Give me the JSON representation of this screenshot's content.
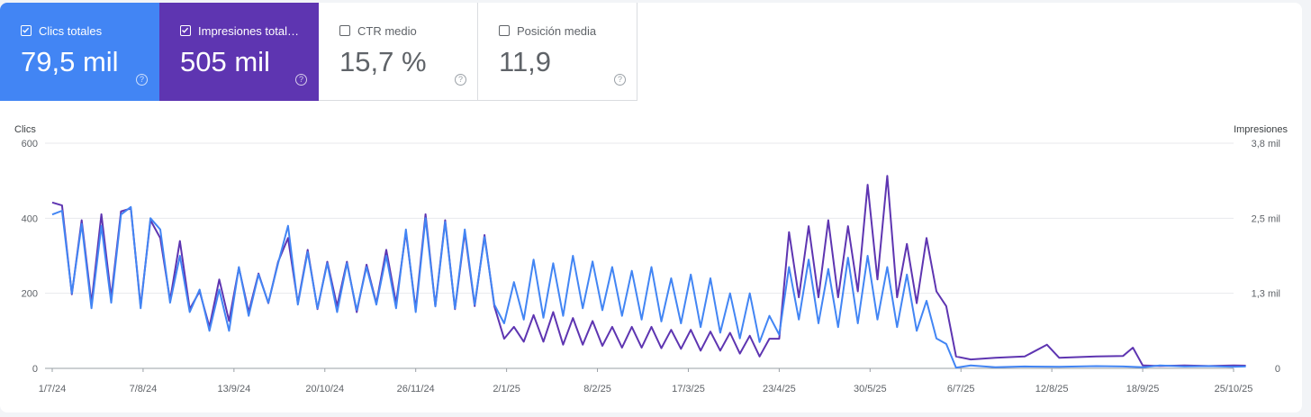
{
  "metrics": [
    {
      "label": "Clics totales",
      "value": "79,5 mil",
      "checked": true
    },
    {
      "label": "Impresiones total…",
      "value": "505 mil",
      "checked": true
    },
    {
      "label": "CTR medio",
      "value": "15,7 %",
      "checked": false
    },
    {
      "label": "Posición media",
      "value": "11,9",
      "checked": false
    }
  ],
  "help_glyph": "?",
  "colors": {
    "clicks": "#4285f4",
    "impressions": "#5e35b1",
    "grid": "#e8eaed"
  },
  "chart_data": {
    "type": "line",
    "left_axis_title": "Clics",
    "right_axis_title": "Impresiones",
    "left_ticks": [
      "0",
      "200",
      "400",
      "600"
    ],
    "right_ticks": [
      "0",
      "1,3 mil",
      "2,5 mil",
      "3,8 mil"
    ],
    "ylim_left": [
      0,
      600
    ],
    "ylim_right": [
      0,
      3800
    ],
    "grid": true,
    "x_tick_labels": [
      "1/7/24",
      "7/8/24",
      "13/9/24",
      "20/10/24",
      "26/11/24",
      "2/1/25",
      "8/2/25",
      "17/3/25",
      "23/4/25",
      "30/5/25",
      "6/7/25",
      "12/8/25",
      "18/9/25",
      "25/10/25"
    ],
    "x_tick_dates": [
      "2024-07-01",
      "2024-08-07",
      "2024-09-13",
      "2024-10-20",
      "2024-11-26",
      "2025-01-02",
      "2025-02-08",
      "2025-03-17",
      "2025-04-23",
      "2025-05-30",
      "2025-07-06",
      "2025-08-12",
      "2025-09-18",
      "2025-10-25"
    ],
    "series": [
      {
        "name": "Clics",
        "axis": "left",
        "points": [
          [
            "2024-07-01",
            410
          ],
          [
            "2024-07-05",
            420
          ],
          [
            "2024-07-09",
            200
          ],
          [
            "2024-07-13",
            385
          ],
          [
            "2024-07-17",
            160
          ],
          [
            "2024-07-21",
            380
          ],
          [
            "2024-07-25",
            175
          ],
          [
            "2024-07-29",
            410
          ],
          [
            "2024-08-02",
            430
          ],
          [
            "2024-08-06",
            160
          ],
          [
            "2024-08-10",
            400
          ],
          [
            "2024-08-14",
            370
          ],
          [
            "2024-08-18",
            175
          ],
          [
            "2024-08-22",
            300
          ],
          [
            "2024-08-26",
            150
          ],
          [
            "2024-08-30",
            210
          ],
          [
            "2024-09-03",
            100
          ],
          [
            "2024-09-07",
            210
          ],
          [
            "2024-09-11",
            100
          ],
          [
            "2024-09-15",
            270
          ],
          [
            "2024-09-19",
            140
          ],
          [
            "2024-09-23",
            250
          ],
          [
            "2024-09-27",
            175
          ],
          [
            "2024-10-01",
            280
          ],
          [
            "2024-10-05",
            380
          ],
          [
            "2024-10-09",
            170
          ],
          [
            "2024-10-13",
            310
          ],
          [
            "2024-10-17",
            160
          ],
          [
            "2024-10-21",
            280
          ],
          [
            "2024-10-25",
            150
          ],
          [
            "2024-10-29",
            280
          ],
          [
            "2024-11-02",
            155
          ],
          [
            "2024-11-06",
            270
          ],
          [
            "2024-11-10",
            170
          ],
          [
            "2024-11-14",
            300
          ],
          [
            "2024-11-18",
            160
          ],
          [
            "2024-11-22",
            370
          ],
          [
            "2024-11-26",
            150
          ],
          [
            "2024-11-30",
            400
          ],
          [
            "2024-12-04",
            165
          ],
          [
            "2024-12-08",
            390
          ],
          [
            "2024-12-12",
            160
          ],
          [
            "2024-12-16",
            370
          ],
          [
            "2024-12-20",
            170
          ],
          [
            "2024-12-24",
            350
          ],
          [
            "2024-12-28",
            170
          ],
          [
            "2025-01-01",
            120
          ],
          [
            "2025-01-05",
            230
          ],
          [
            "2025-01-09",
            130
          ],
          [
            "2025-01-13",
            290
          ],
          [
            "2025-01-17",
            135
          ],
          [
            "2025-01-21",
            280
          ],
          [
            "2025-01-25",
            140
          ],
          [
            "2025-01-29",
            300
          ],
          [
            "2025-02-02",
            160
          ],
          [
            "2025-02-06",
            285
          ],
          [
            "2025-02-10",
            155
          ],
          [
            "2025-02-14",
            270
          ],
          [
            "2025-02-18",
            140
          ],
          [
            "2025-02-22",
            260
          ],
          [
            "2025-02-26",
            130
          ],
          [
            "2025-03-02",
            270
          ],
          [
            "2025-03-06",
            125
          ],
          [
            "2025-03-10",
            240
          ],
          [
            "2025-03-14",
            120
          ],
          [
            "2025-03-18",
            250
          ],
          [
            "2025-03-22",
            110
          ],
          [
            "2025-03-26",
            240
          ],
          [
            "2025-03-30",
            95
          ],
          [
            "2025-04-03",
            200
          ],
          [
            "2025-04-07",
            80
          ],
          [
            "2025-04-11",
            200
          ],
          [
            "2025-04-15",
            70
          ],
          [
            "2025-04-19",
            140
          ],
          [
            "2025-04-23",
            90
          ],
          [
            "2025-04-27",
            270
          ],
          [
            "2025-05-01",
            130
          ],
          [
            "2025-05-05",
            290
          ],
          [
            "2025-05-09",
            120
          ],
          [
            "2025-05-13",
            265
          ],
          [
            "2025-05-17",
            110
          ],
          [
            "2025-05-21",
            295
          ],
          [
            "2025-05-25",
            120
          ],
          [
            "2025-05-29",
            300
          ],
          [
            "2025-06-02",
            130
          ],
          [
            "2025-06-06",
            270
          ],
          [
            "2025-06-10",
            110
          ],
          [
            "2025-06-14",
            250
          ],
          [
            "2025-06-18",
            100
          ],
          [
            "2025-06-22",
            180
          ],
          [
            "2025-06-26",
            80
          ],
          [
            "2025-06-30",
            65
          ],
          [
            "2025-07-04",
            2
          ],
          [
            "2025-07-10",
            8
          ],
          [
            "2025-07-20",
            3
          ],
          [
            "2025-08-01",
            5
          ],
          [
            "2025-08-15",
            4
          ],
          [
            "2025-08-30",
            6
          ],
          [
            "2025-09-10",
            5
          ],
          [
            "2025-09-18",
            3
          ],
          [
            "2025-09-25",
            8
          ],
          [
            "2025-10-05",
            5
          ],
          [
            "2025-10-15",
            6
          ],
          [
            "2025-10-25",
            4
          ],
          [
            "2025-10-30",
            5
          ]
        ]
      },
      {
        "name": "Impresiones",
        "axis": "right",
        "points": [
          [
            "2024-07-01",
            2800
          ],
          [
            "2024-07-05",
            2750
          ],
          [
            "2024-07-09",
            1250
          ],
          [
            "2024-07-13",
            2500
          ],
          [
            "2024-07-17",
            1100
          ],
          [
            "2024-07-21",
            2600
          ],
          [
            "2024-07-25",
            1200
          ],
          [
            "2024-07-29",
            2650
          ],
          [
            "2024-08-02",
            2700
          ],
          [
            "2024-08-06",
            1050
          ],
          [
            "2024-08-10",
            2500
          ],
          [
            "2024-08-14",
            2200
          ],
          [
            "2024-08-18",
            1150
          ],
          [
            "2024-08-22",
            2150
          ],
          [
            "2024-08-26",
            1000
          ],
          [
            "2024-08-30",
            1300
          ],
          [
            "2024-09-03",
            700
          ],
          [
            "2024-09-07",
            1500
          ],
          [
            "2024-09-11",
            800
          ],
          [
            "2024-09-15",
            1700
          ],
          [
            "2024-09-19",
            950
          ],
          [
            "2024-09-23",
            1600
          ],
          [
            "2024-09-27",
            1100
          ],
          [
            "2024-10-01",
            1800
          ],
          [
            "2024-10-05",
            2200
          ],
          [
            "2024-10-09",
            1100
          ],
          [
            "2024-10-13",
            2000
          ],
          [
            "2024-10-17",
            1000
          ],
          [
            "2024-10-21",
            1800
          ],
          [
            "2024-10-25",
            1050
          ],
          [
            "2024-10-29",
            1800
          ],
          [
            "2024-11-02",
            950
          ],
          [
            "2024-11-06",
            1750
          ],
          [
            "2024-11-10",
            1100
          ],
          [
            "2024-11-14",
            2000
          ],
          [
            "2024-11-18",
            1100
          ],
          [
            "2024-11-22",
            2300
          ],
          [
            "2024-11-26",
            1000
          ],
          [
            "2024-11-30",
            2600
          ],
          [
            "2024-12-04",
            1050
          ],
          [
            "2024-12-08",
            2500
          ],
          [
            "2024-12-12",
            1000
          ],
          [
            "2024-12-16",
            2300
          ],
          [
            "2024-12-20",
            1050
          ],
          [
            "2024-12-24",
            2250
          ],
          [
            "2024-12-28",
            1050
          ],
          [
            "2025-01-01",
            500
          ],
          [
            "2025-01-05",
            700
          ],
          [
            "2025-01-09",
            450
          ],
          [
            "2025-01-13",
            900
          ],
          [
            "2025-01-17",
            450
          ],
          [
            "2025-01-21",
            950
          ],
          [
            "2025-01-25",
            400
          ],
          [
            "2025-01-29",
            850
          ],
          [
            "2025-02-02",
            400
          ],
          [
            "2025-02-06",
            800
          ],
          [
            "2025-02-10",
            380
          ],
          [
            "2025-02-14",
            700
          ],
          [
            "2025-02-18",
            350
          ],
          [
            "2025-02-22",
            700
          ],
          [
            "2025-02-26",
            350
          ],
          [
            "2025-03-02",
            700
          ],
          [
            "2025-03-06",
            340
          ],
          [
            "2025-03-10",
            650
          ],
          [
            "2025-03-14",
            330
          ],
          [
            "2025-03-18",
            650
          ],
          [
            "2025-03-22",
            300
          ],
          [
            "2025-03-26",
            620
          ],
          [
            "2025-03-30",
            300
          ],
          [
            "2025-04-03",
            600
          ],
          [
            "2025-04-07",
            250
          ],
          [
            "2025-04-11",
            550
          ],
          [
            "2025-04-15",
            200
          ],
          [
            "2025-04-19",
            500
          ],
          [
            "2025-04-23",
            500
          ],
          [
            "2025-04-27",
            2300
          ],
          [
            "2025-05-01",
            1200
          ],
          [
            "2025-05-05",
            2400
          ],
          [
            "2025-05-09",
            1200
          ],
          [
            "2025-05-13",
            2500
          ],
          [
            "2025-05-17",
            1200
          ],
          [
            "2025-05-21",
            2400
          ],
          [
            "2025-05-25",
            1300
          ],
          [
            "2025-05-29",
            3100
          ],
          [
            "2025-06-02",
            1500
          ],
          [
            "2025-06-06",
            3250
          ],
          [
            "2025-06-10",
            1200
          ],
          [
            "2025-06-14",
            2100
          ],
          [
            "2025-06-18",
            1100
          ],
          [
            "2025-06-22",
            2200
          ],
          [
            "2025-06-26",
            1300
          ],
          [
            "2025-06-30",
            1050
          ],
          [
            "2025-07-04",
            200
          ],
          [
            "2025-07-10",
            150
          ],
          [
            "2025-07-20",
            180
          ],
          [
            "2025-08-01",
            200
          ],
          [
            "2025-08-10",
            400
          ],
          [
            "2025-08-15",
            180
          ],
          [
            "2025-08-30",
            200
          ],
          [
            "2025-09-10",
            210
          ],
          [
            "2025-09-14",
            350
          ],
          [
            "2025-09-18",
            50
          ],
          [
            "2025-09-25",
            40
          ],
          [
            "2025-10-05",
            50
          ],
          [
            "2025-10-15",
            40
          ],
          [
            "2025-10-25",
            50
          ],
          [
            "2025-10-30",
            45
          ]
        ]
      }
    ]
  }
}
